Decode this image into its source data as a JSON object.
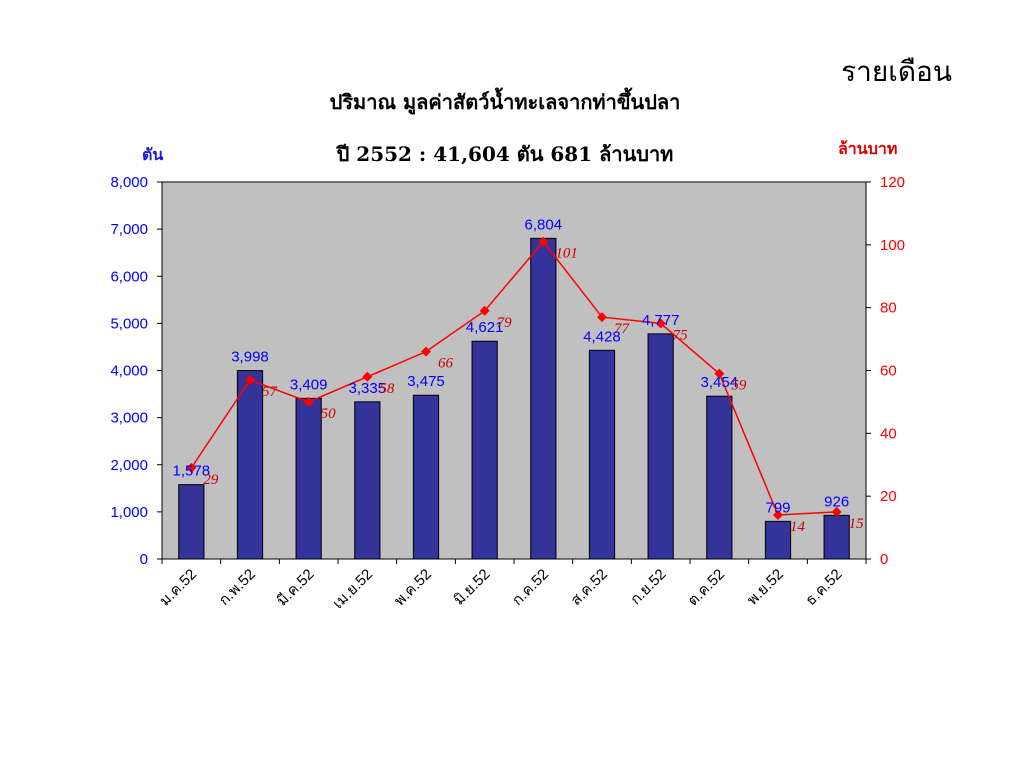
{
  "header": {
    "corner_label": "รายเดือน",
    "title_line1": "ปริมาณ มูลค่าสัตว์น้ำทะเลจากท่าขึ้นปลา",
    "title_line2": "ปี 2552 : 41,604 ตัน 681 ล้านบาท",
    "left_unit": "ตัน",
    "right_unit": "ล้านบาท"
  },
  "colors": {
    "bar": "#33339a",
    "bar_label": "#0000ff",
    "line": "#ff0000",
    "line_label": "#cc0000",
    "plot_bg": "#c0c0c0",
    "left_axis_ticks": "#0000ff",
    "right_axis_ticks": "#ff0000"
  },
  "chart_data": {
    "type": "bar",
    "categories": [
      "ม.ค.52",
      "ก.พ.52",
      "มี.ค.52",
      "เม.ย.52",
      "พ.ค.52",
      "มิ.ย.52",
      "ก.ค.52",
      "ส.ค.52",
      "ก.ย.52",
      "ต.ค.52",
      "พ.ย.52",
      "ธ.ค.52"
    ],
    "series": [
      {
        "type": "bar",
        "axis": "left",
        "values": [
          1578,
          3998,
          3409,
          3335,
          3475,
          4621,
          6804,
          4428,
          4777,
          3454,
          799,
          926
        ],
        "labels": [
          "1,578",
          "3,998",
          "3,409",
          "3,335",
          "3,475",
          "4,621",
          "6,804",
          "4,428",
          "4,777",
          "3,454",
          "799",
          "926"
        ]
      },
      {
        "type": "line",
        "axis": "right",
        "values": [
          29,
          57,
          50,
          58,
          66,
          79,
          101,
          77,
          75,
          59,
          14,
          15
        ],
        "labels": [
          "29",
          "57",
          "50",
          "58",
          "66",
          "79",
          "101",
          "77",
          "75",
          "59",
          "14",
          "15"
        ]
      }
    ],
    "y_left": {
      "min": 0,
      "max": 8000,
      "ticks": [
        "0",
        "1,000",
        "2,000",
        "3,000",
        "4,000",
        "5,000",
        "6,000",
        "7,000",
        "8,000"
      ]
    },
    "y_right": {
      "min": 0,
      "max": 120,
      "ticks": [
        "0",
        "20",
        "40",
        "60",
        "80",
        "100",
        "120"
      ]
    },
    "grid": false,
    "legend": "none"
  }
}
